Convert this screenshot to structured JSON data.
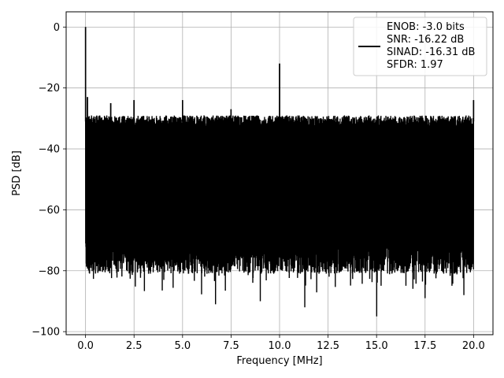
{
  "chart_data": {
    "type": "line",
    "title": "",
    "xlabel": "Frequency [MHz]",
    "ylabel": "PSD [dB]",
    "xlim": [
      -1.0,
      21.0
    ],
    "ylim": [
      -101,
      5
    ],
    "x_ticks": [
      0.0,
      2.5,
      5.0,
      7.5,
      10.0,
      12.5,
      15.0,
      17.5,
      20.0
    ],
    "x_tick_labels": [
      "0.0",
      "2.5",
      "5.0",
      "7.5",
      "10.0",
      "12.5",
      "15.0",
      "17.5",
      "20.0"
    ],
    "y_ticks": [
      0,
      -20,
      -40,
      -60,
      -80,
      -100
    ],
    "y_tick_labels": [
      "0",
      "−20",
      "−40",
      "−60",
      "−80",
      "−100"
    ],
    "grid": true,
    "legend_position": "top-right",
    "series": [
      {
        "name": "ENOB: -3.0 bits\nSNR: -16.22 dB\nSINAD: -16.31 dB\nSFDR: 1.97",
        "color": "#000000",
        "noise_floor_upper_db": -31,
        "noise_floor_lower_db": -76,
        "spikes": [
          {
            "x": 0.0,
            "y": 0
          },
          {
            "x": 0.1,
            "y": -23
          },
          {
            "x": 1.3,
            "y": -25
          },
          {
            "x": 2.5,
            "y": -24
          },
          {
            "x": 5.0,
            "y": -24
          },
          {
            "x": 7.5,
            "y": -27
          },
          {
            "x": 10.0,
            "y": -12
          },
          {
            "x": 20.0,
            "y": -24
          }
        ],
        "dips": [
          {
            "x": 6.7,
            "y": -91
          },
          {
            "x": 9.0,
            "y": -90
          },
          {
            "x": 11.3,
            "y": -92
          },
          {
            "x": 15.0,
            "y": -95
          },
          {
            "x": 17.5,
            "y": -89
          },
          {
            "x": 19.5,
            "y": -88
          }
        ]
      }
    ]
  },
  "legend": {
    "lines": [
      "ENOB: -3.0 bits",
      "SNR: -16.22 dB",
      "SINAD: -16.31 dB",
      "SFDR: 1.97"
    ]
  }
}
